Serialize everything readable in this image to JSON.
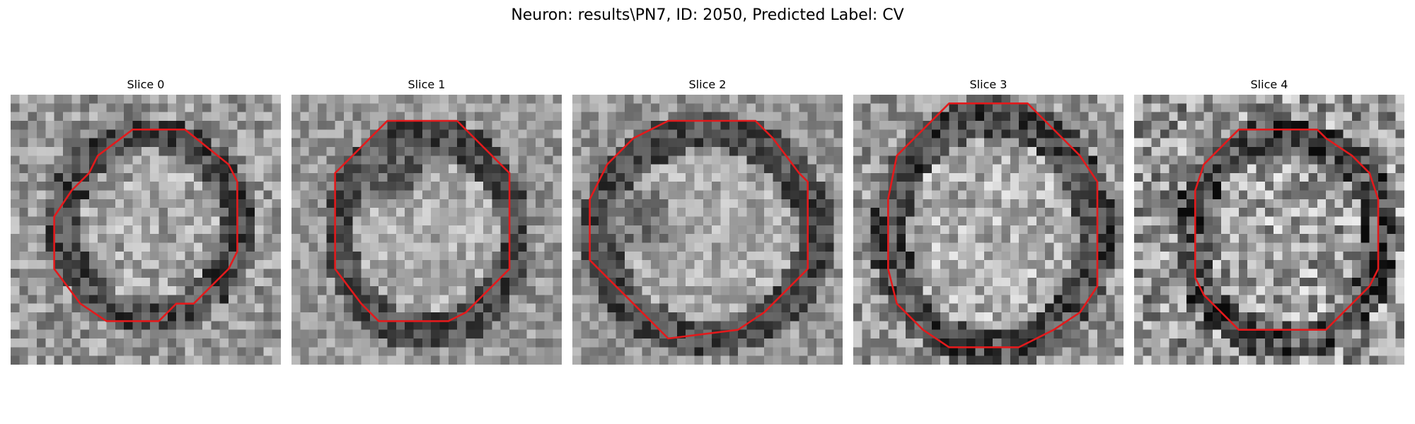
{
  "figure": {
    "title": "Neuron: results\\PN7, ID: 2050, Predicted Label: CV"
  },
  "panels": [
    {
      "title": "Slice 0",
      "contour_color": "#e31a1c"
    },
    {
      "title": "Slice 1",
      "contour_color": "#e31a1c"
    },
    {
      "title": "Slice 2",
      "contour_color": "#e31a1c"
    },
    {
      "title": "Slice 3",
      "contour_color": "#e31a1c"
    },
    {
      "title": "Slice 4",
      "contour_color": "#e31a1c"
    }
  ]
}
